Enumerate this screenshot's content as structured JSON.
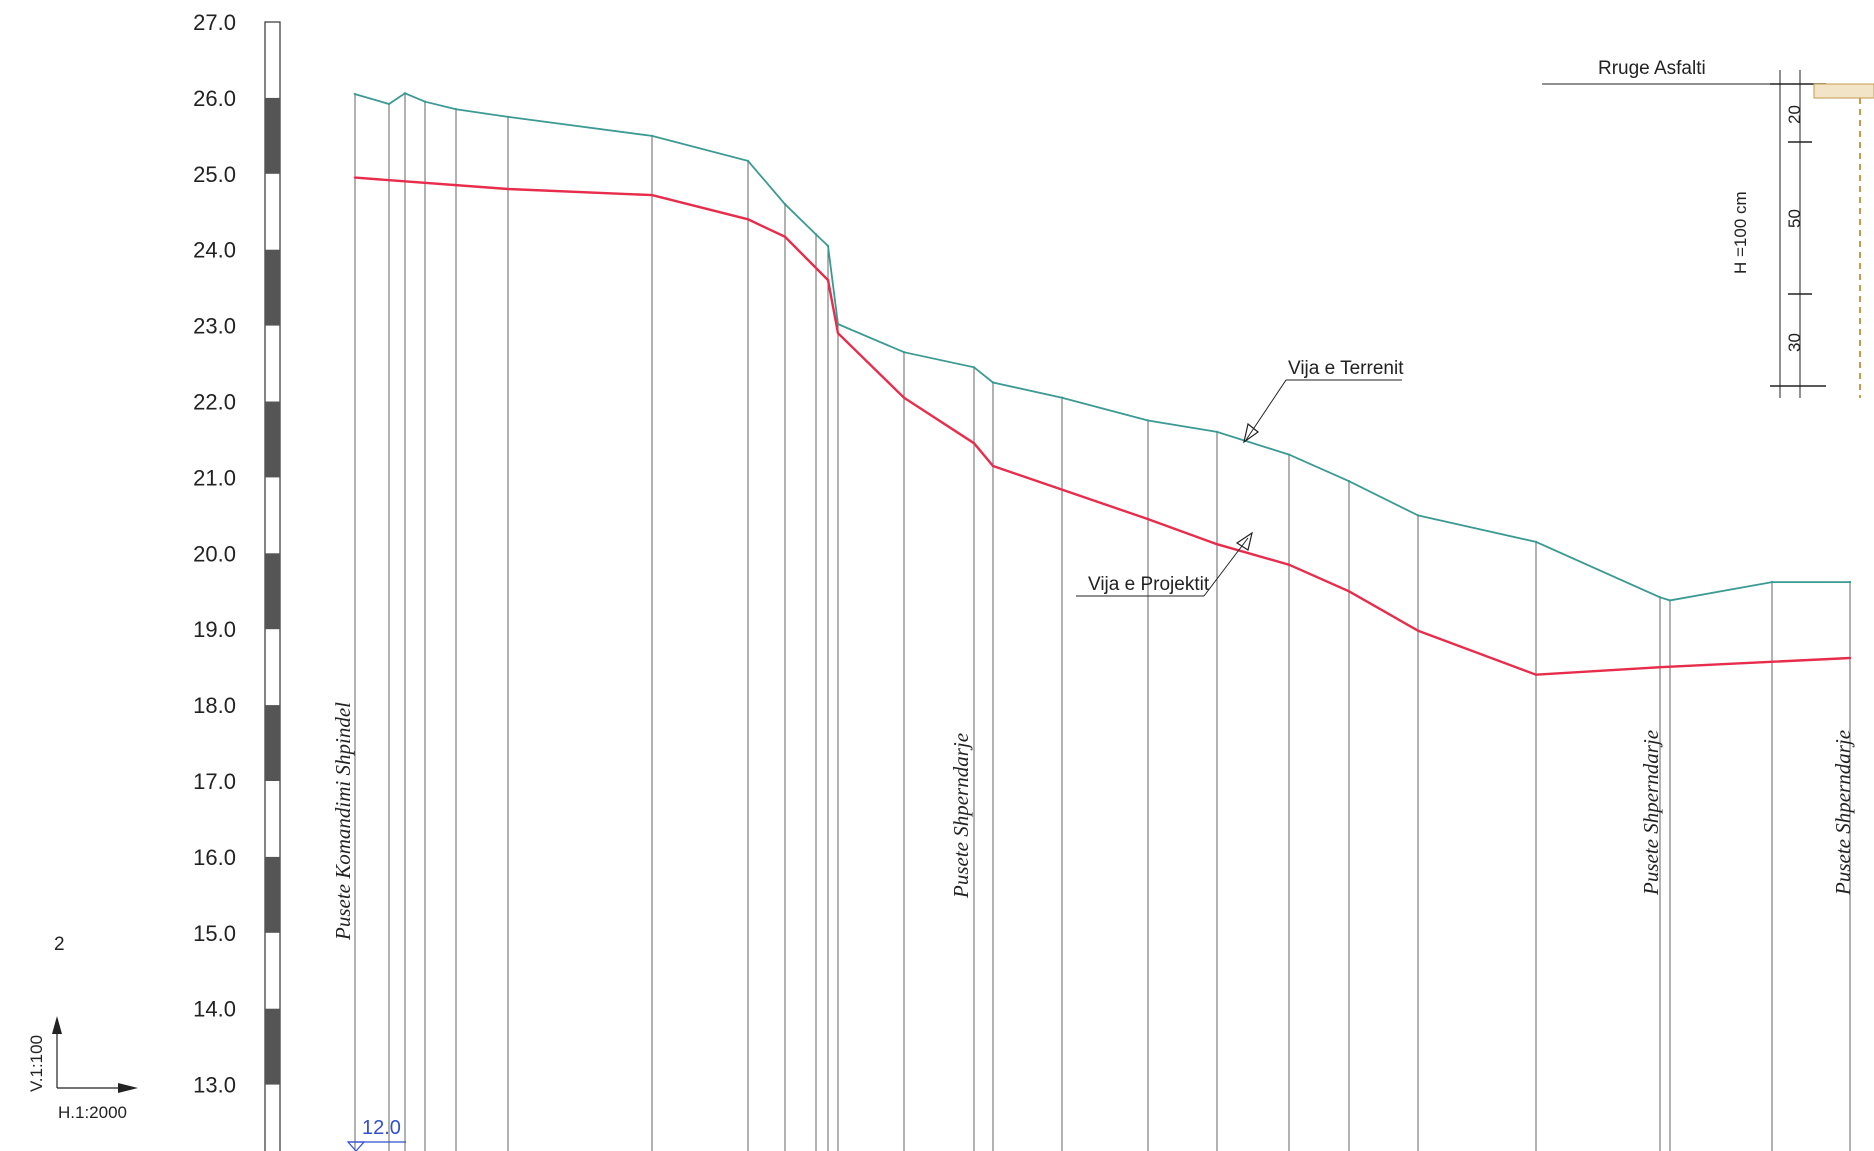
{
  "chart_data": {
    "type": "line",
    "y_axis": {
      "range": [
        12.0,
        27.0
      ],
      "ticks": [
        "27.0",
        "26.0",
        "25.0",
        "24.0",
        "23.0",
        "22.0",
        "21.0",
        "20.0",
        "19.0",
        "18.0",
        "17.0",
        "16.0",
        "15.0",
        "14.0",
        "13.0"
      ]
    },
    "series": [
      {
        "name": "Vija e Terrenit",
        "color": "#3b9a93",
        "values": [
          26.05,
          25.92,
          26.06,
          25.95,
          25.85,
          25.75,
          25.5,
          25.17,
          24.6,
          24.2,
          24.05,
          23.02,
          22.65,
          22.45,
          22.25,
          22.05,
          21.75,
          21.6,
          21.3,
          20.95,
          20.5,
          20.15,
          19.42,
          19.38,
          19.62,
          19.62
        ]
      },
      {
        "name": "Vija e Projektit",
        "color": "#e82c4c",
        "values": [
          24.95,
          24.8,
          24.72,
          24.4,
          24.17,
          23.6,
          22.9,
          22.05,
          21.45,
          21.15,
          20.45,
          20.12,
          19.85,
          19.5,
          18.98,
          18.4,
          18.5,
          18.62
        ]
      }
    ],
    "annotations": [
      "Vija e Terrenit",
      "Vija e Projektit"
    ],
    "station_labels": [
      "Pusete Komandimi Shpindel",
      "Pusete Shperndarje",
      "Pusete Shperndarje",
      "Pusete Shperndarje"
    ],
    "datum_value": "12.0",
    "scales": {
      "vertical": "V.1:100",
      "horizontal": "H.1:2000"
    },
    "grid": false,
    "legend": "none"
  },
  "section_detail": {
    "title": "Rruge Asfalti",
    "height_label": "H =100 cm",
    "layers": [
      "20",
      "50",
      "30"
    ]
  },
  "page_number": "2",
  "colors": {
    "terrain": "#3b9a93",
    "project": "#e82c4c",
    "ink": "#222222",
    "datum": "#3050d0"
  }
}
